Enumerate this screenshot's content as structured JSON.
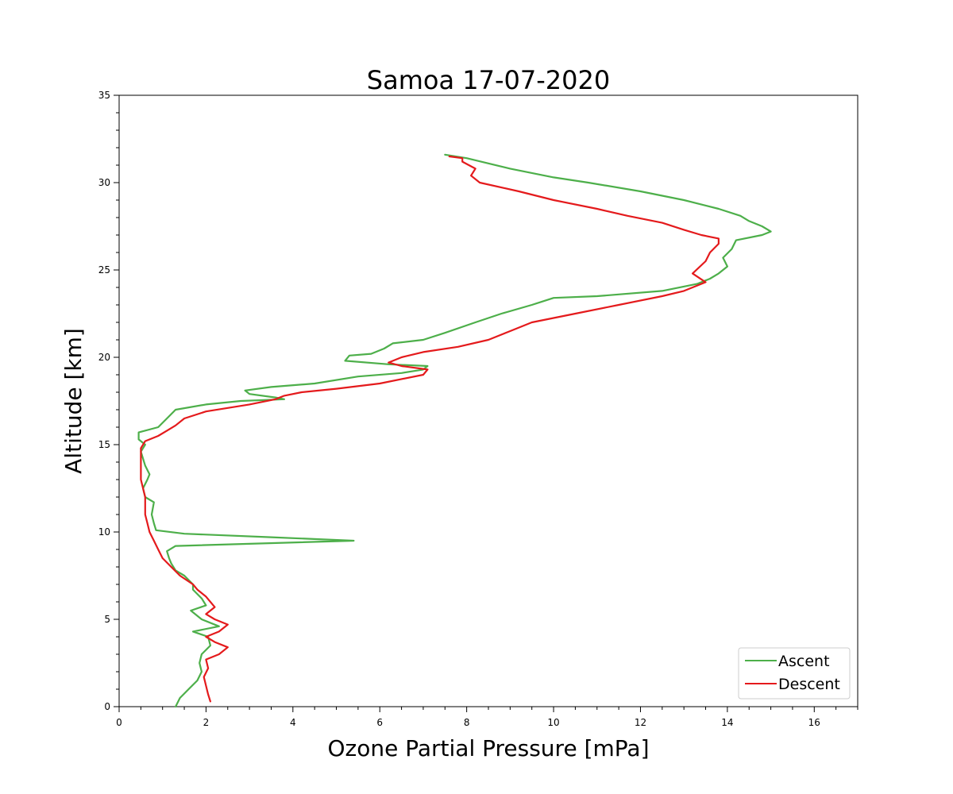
{
  "chart_data": {
    "type": "line",
    "title": "Samoa  17-07-2020",
    "xlabel": "Ozone Partial Pressure [mPa]",
    "ylabel": "Altitude [km]",
    "xlim": [
      0,
      17
    ],
    "ylim": [
      0,
      35
    ],
    "xticks": [
      0,
      2,
      4,
      6,
      8,
      10,
      12,
      14,
      16
    ],
    "yticks": [
      0,
      5,
      10,
      15,
      20,
      25,
      30,
      35
    ],
    "legend_position": "lower-right",
    "grid": false,
    "series": [
      {
        "name": "Ascent",
        "color": "#4daf4a",
        "points": [
          [
            1.3,
            0
          ],
          [
            1.4,
            0.5
          ],
          [
            1.6,
            1.0
          ],
          [
            1.8,
            1.5
          ],
          [
            1.9,
            2.0
          ],
          [
            1.85,
            2.5
          ],
          [
            1.9,
            3.0
          ],
          [
            2.1,
            3.5
          ],
          [
            2.05,
            4.0
          ],
          [
            1.7,
            4.3
          ],
          [
            2.3,
            4.6
          ],
          [
            1.9,
            5.0
          ],
          [
            1.65,
            5.5
          ],
          [
            2.0,
            5.8
          ],
          [
            1.9,
            6.2
          ],
          [
            1.7,
            6.7
          ],
          [
            1.7,
            7.0
          ],
          [
            1.5,
            7.5
          ],
          [
            1.3,
            7.8
          ],
          [
            1.2,
            8.2
          ],
          [
            1.15,
            8.5
          ],
          [
            1.1,
            8.9
          ],
          [
            1.3,
            9.2
          ],
          [
            5.4,
            9.5
          ],
          [
            3.5,
            9.7
          ],
          [
            1.5,
            9.9
          ],
          [
            0.85,
            10.1
          ],
          [
            0.8,
            10.5
          ],
          [
            0.75,
            11.0
          ],
          [
            0.8,
            11.7
          ],
          [
            0.6,
            12.0
          ],
          [
            0.55,
            12.5
          ],
          [
            0.65,
            13.0
          ],
          [
            0.7,
            13.3
          ],
          [
            0.6,
            13.8
          ],
          [
            0.55,
            14.2
          ],
          [
            0.5,
            14.6
          ],
          [
            0.6,
            15.0
          ],
          [
            0.45,
            15.3
          ],
          [
            0.45,
            15.7
          ],
          [
            0.9,
            16.0
          ],
          [
            1.1,
            16.5
          ],
          [
            1.3,
            17.0
          ],
          [
            2.0,
            17.3
          ],
          [
            2.8,
            17.5
          ],
          [
            3.8,
            17.6
          ],
          [
            3.6,
            17.7
          ],
          [
            3.0,
            17.9
          ],
          [
            2.9,
            18.1
          ],
          [
            3.5,
            18.3
          ],
          [
            4.5,
            18.5
          ],
          [
            5.5,
            18.9
          ],
          [
            6.5,
            19.1
          ],
          [
            7.0,
            19.3
          ],
          [
            7.1,
            19.5
          ],
          [
            6.2,
            19.6
          ],
          [
            5.2,
            19.8
          ],
          [
            5.3,
            20.1
          ],
          [
            5.8,
            20.2
          ],
          [
            6.1,
            20.5
          ],
          [
            6.3,
            20.8
          ],
          [
            7.0,
            21.0
          ],
          [
            7.5,
            21.4
          ],
          [
            8.2,
            22.0
          ],
          [
            8.8,
            22.5
          ],
          [
            9.5,
            23.0
          ],
          [
            10.0,
            23.4
          ],
          [
            11.0,
            23.5
          ],
          [
            12.5,
            23.8
          ],
          [
            13.3,
            24.2
          ],
          [
            13.6,
            24.5
          ],
          [
            13.8,
            24.8
          ],
          [
            14.0,
            25.2
          ],
          [
            13.9,
            25.7
          ],
          [
            14.1,
            26.2
          ],
          [
            14.2,
            26.7
          ],
          [
            14.8,
            27.0
          ],
          [
            15.0,
            27.2
          ],
          [
            14.8,
            27.5
          ],
          [
            14.5,
            27.8
          ],
          [
            14.3,
            28.1
          ],
          [
            13.8,
            28.5
          ],
          [
            13.0,
            29.0
          ],
          [
            12.0,
            29.5
          ],
          [
            10.8,
            30.0
          ],
          [
            10.0,
            30.3
          ],
          [
            9.0,
            30.8
          ],
          [
            8.5,
            31.1
          ],
          [
            8.0,
            31.4
          ],
          [
            7.5,
            31.6
          ]
        ]
      },
      {
        "name": "Descent",
        "color": "#e41a1c",
        "points": [
          [
            2.1,
            0.3
          ],
          [
            2.05,
            0.7
          ],
          [
            2.0,
            1.2
          ],
          [
            1.95,
            1.7
          ],
          [
            2.05,
            2.2
          ],
          [
            2.0,
            2.7
          ],
          [
            2.3,
            3.0
          ],
          [
            2.5,
            3.4
          ],
          [
            2.2,
            3.7
          ],
          [
            2.0,
            4.0
          ],
          [
            2.3,
            4.3
          ],
          [
            2.5,
            4.7
          ],
          [
            2.2,
            5.0
          ],
          [
            2.0,
            5.3
          ],
          [
            2.2,
            5.7
          ],
          [
            2.0,
            6.3
          ],
          [
            1.8,
            6.7
          ],
          [
            1.7,
            7.0
          ],
          [
            1.4,
            7.5
          ],
          [
            1.2,
            8.0
          ],
          [
            1.0,
            8.5
          ],
          [
            0.9,
            9.0
          ],
          [
            0.8,
            9.5
          ],
          [
            0.7,
            10.0
          ],
          [
            0.65,
            10.5
          ],
          [
            0.6,
            11.0
          ],
          [
            0.6,
            12.0
          ],
          [
            0.5,
            13.0
          ],
          [
            0.5,
            14.0
          ],
          [
            0.5,
            14.8
          ],
          [
            0.6,
            15.2
          ],
          [
            0.9,
            15.5
          ],
          [
            1.1,
            15.8
          ],
          [
            1.3,
            16.1
          ],
          [
            1.5,
            16.5
          ],
          [
            2.0,
            16.9
          ],
          [
            3.0,
            17.3
          ],
          [
            3.6,
            17.6
          ],
          [
            3.8,
            17.8
          ],
          [
            4.2,
            18.0
          ],
          [
            5.0,
            18.2
          ],
          [
            6.0,
            18.5
          ],
          [
            7.0,
            19.0
          ],
          [
            7.1,
            19.3
          ],
          [
            6.5,
            19.5
          ],
          [
            6.2,
            19.7
          ],
          [
            6.5,
            20.0
          ],
          [
            7.0,
            20.3
          ],
          [
            7.8,
            20.6
          ],
          [
            8.5,
            21.0
          ],
          [
            9.0,
            21.5
          ],
          [
            9.5,
            22.0
          ],
          [
            10.5,
            22.5
          ],
          [
            11.5,
            23.0
          ],
          [
            12.5,
            23.5
          ],
          [
            13.0,
            23.8
          ],
          [
            13.5,
            24.3
          ],
          [
            13.2,
            24.8
          ],
          [
            13.5,
            25.5
          ],
          [
            13.6,
            26.0
          ],
          [
            13.8,
            26.5
          ],
          [
            13.8,
            26.8
          ],
          [
            13.4,
            27.0
          ],
          [
            13.0,
            27.3
          ],
          [
            12.5,
            27.7
          ],
          [
            11.7,
            28.1
          ],
          [
            11.0,
            28.5
          ],
          [
            10.0,
            29.0
          ],
          [
            9.2,
            29.5
          ],
          [
            8.3,
            30.0
          ],
          [
            8.1,
            30.4
          ],
          [
            8.2,
            30.8
          ],
          [
            7.9,
            31.2
          ],
          [
            7.9,
            31.4
          ],
          [
            7.6,
            31.5
          ]
        ]
      }
    ]
  }
}
